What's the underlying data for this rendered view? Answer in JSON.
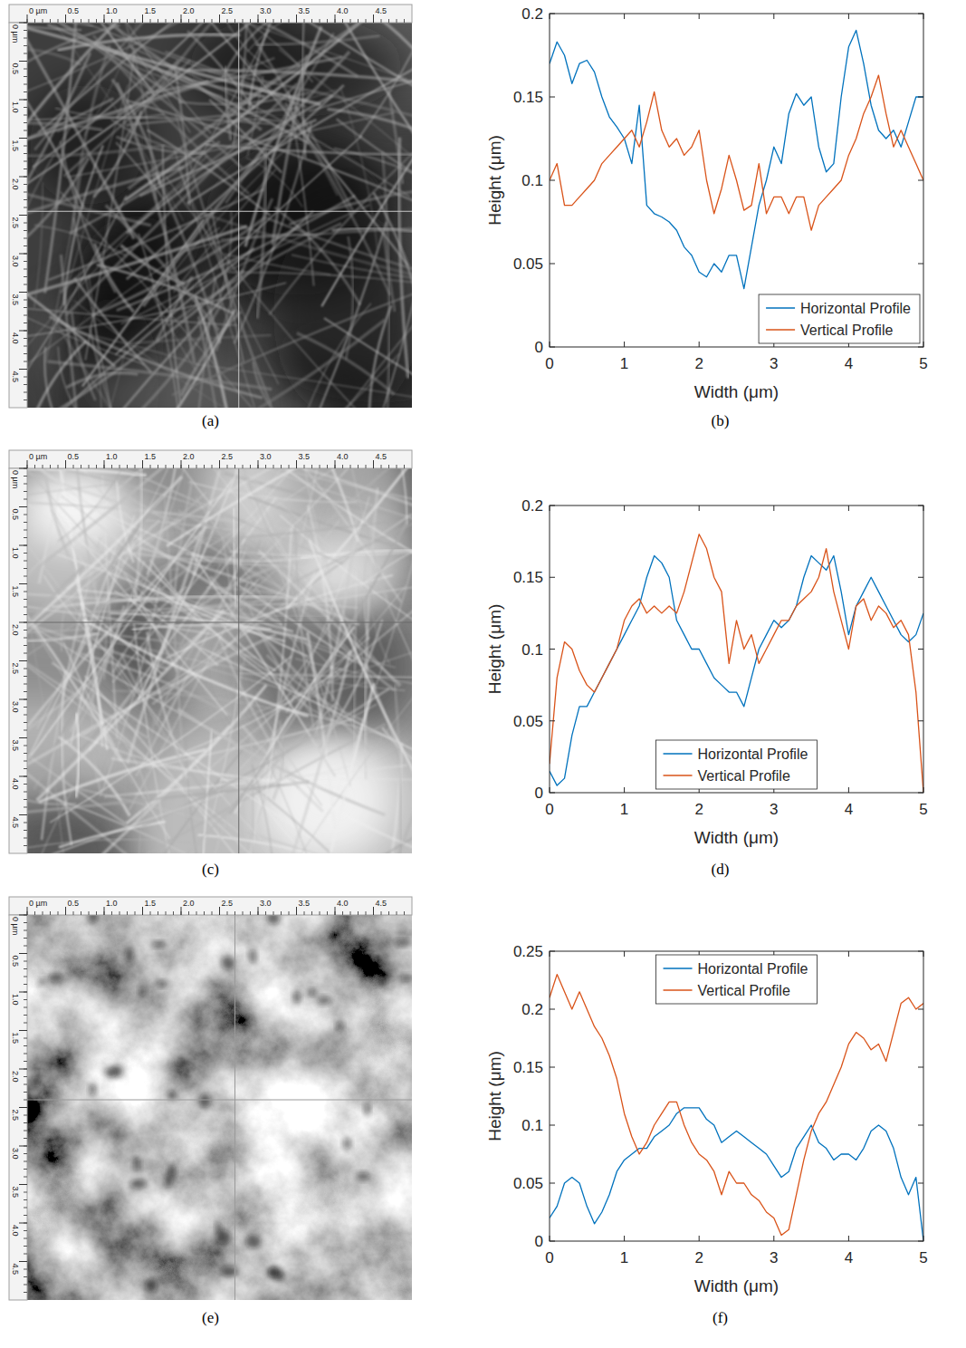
{
  "chart_data": [
    {
      "type": "image",
      "label": "(a)",
      "xlim": [
        0,
        5
      ],
      "ylim": [
        0,
        5
      ],
      "xticks": [
        {
          "value": 0,
          "label": "0 µm"
        },
        0.5,
        {
          "value": 1,
          "label": "1.0"
        },
        1.5,
        {
          "value": 2,
          "label": "2.0"
        },
        2.5,
        {
          "value": 3,
          "label": "3.0"
        },
        3.5,
        {
          "value": 4,
          "label": "4.0"
        },
        4.5
      ],
      "yticks": [
        {
          "value": 0,
          "label": "0 µm"
        },
        0.5,
        {
          "value": 1,
          "label": "1.0"
        },
        1.5,
        {
          "value": 2,
          "label": "2.0"
        },
        2.5,
        {
          "value": 3,
          "label": "3.0"
        },
        3.5,
        {
          "value": 4,
          "label": "4.0"
        },
        4.5
      ],
      "crosshair": {
        "x": 2.75,
        "y": 2.45
      }
    },
    {
      "type": "line",
      "label": "(b)",
      "x_label": "Width (μm)",
      "y_label": "Height (μm)",
      "x": [
        0,
        0.1,
        0.2,
        0.3,
        0.4,
        0.5,
        0.6,
        0.7,
        0.8,
        0.9,
        1,
        1.1,
        1.2,
        1.3,
        1.4,
        1.5,
        1.6,
        1.7,
        1.8,
        1.9,
        2,
        2.1,
        2.2,
        2.3,
        2.4,
        2.5,
        2.6,
        2.7,
        2.8,
        2.9,
        3,
        3.1,
        3.2,
        3.3,
        3.4,
        3.5,
        3.6,
        3.7,
        3.8,
        3.9,
        4,
        4.1,
        4.2,
        4.3,
        4.4,
        4.5,
        4.6,
        4.7,
        4.8,
        4.9,
        5
      ],
      "series": [
        {
          "name": "Horizontal Profile",
          "color": "#0072bd",
          "values": [
            0.17,
            0.183,
            0.175,
            0.158,
            0.17,
            0.172,
            0.165,
            0.15,
            0.138,
            0.132,
            0.125,
            0.11,
            0.145,
            0.085,
            0.08,
            0.078,
            0.075,
            0.07,
            0.06,
            0.055,
            0.045,
            0.042,
            0.05,
            0.045,
            0.055,
            0.055,
            0.035,
            0.06,
            0.085,
            0.1,
            0.12,
            0.11,
            0.14,
            0.152,
            0.145,
            0.15,
            0.12,
            0.105,
            0.11,
            0.15,
            0.18,
            0.19,
            0.17,
            0.145,
            0.13,
            0.125,
            0.13,
            0.12,
            0.135,
            0.15,
            0.15
          ]
        },
        {
          "name": "Vertical Profile",
          "color": "#d95319",
          "values": [
            0.1,
            0.11,
            0.085,
            0.085,
            0.09,
            0.095,
            0.1,
            0.11,
            0.115,
            0.12,
            0.125,
            0.13,
            0.12,
            0.135,
            0.153,
            0.13,
            0.12,
            0.125,
            0.115,
            0.12,
            0.13,
            0.1,
            0.08,
            0.095,
            0.115,
            0.1,
            0.082,
            0.085,
            0.11,
            0.08,
            0.09,
            0.09,
            0.08,
            0.09,
            0.09,
            0.07,
            0.085,
            0.09,
            0.095,
            0.1,
            0.115,
            0.125,
            0.14,
            0.15,
            0.163,
            0.14,
            0.12,
            0.13,
            0.12,
            0.11,
            0.1
          ]
        }
      ],
      "xlim": [
        0,
        5
      ],
      "xticks": [
        0,
        1,
        2,
        3,
        4,
        5
      ],
      "ylim": [
        0,
        0.2
      ],
      "yticks": [
        0,
        0.05,
        0.1,
        0.15,
        0.2
      ],
      "legend": "lower right"
    },
    {
      "type": "image",
      "label": "(c)",
      "xlim": [
        0,
        5
      ],
      "ylim": [
        0,
        5
      ],
      "xticks": [
        {
          "value": 0,
          "label": "0 µm"
        },
        0.5,
        {
          "value": 1,
          "label": "1.0"
        },
        1.5,
        {
          "value": 2,
          "label": "2.0"
        },
        2.5,
        {
          "value": 3,
          "label": "3.0"
        },
        3.5,
        {
          "value": 4,
          "label": "4.0"
        },
        4.5
      ],
      "yticks": [
        {
          "value": 0,
          "label": "0 µm"
        },
        0.5,
        {
          "value": 1,
          "label": "1.0"
        },
        1.5,
        {
          "value": 2,
          "label": "2.0"
        },
        2.5,
        {
          "value": 3,
          "label": "3.0"
        },
        3.5,
        {
          "value": 4,
          "label": "4.0"
        },
        4.5
      ],
      "crosshair": {
        "x": 2.75,
        "y": 2.0
      }
    },
    {
      "type": "line",
      "label": "(d)",
      "x_label": "Width (μm)",
      "y_label": "Height (μm)",
      "x": [
        0,
        0.1,
        0.2,
        0.3,
        0.4,
        0.5,
        0.6,
        0.7,
        0.8,
        0.9,
        1,
        1.1,
        1.2,
        1.3,
        1.4,
        1.5,
        1.6,
        1.7,
        1.8,
        1.9,
        2,
        2.1,
        2.2,
        2.3,
        2.4,
        2.5,
        2.6,
        2.7,
        2.8,
        2.9,
        3,
        3.1,
        3.2,
        3.3,
        3.4,
        3.5,
        3.6,
        3.7,
        3.8,
        3.9,
        4,
        4.1,
        4.2,
        4.3,
        4.4,
        4.5,
        4.6,
        4.7,
        4.8,
        4.9,
        5
      ],
      "series": [
        {
          "name": "Horizontal Profile",
          "color": "#0072bd",
          "values": [
            0.015,
            0.005,
            0.01,
            0.04,
            0.06,
            0.06,
            0.07,
            0.08,
            0.09,
            0.1,
            0.11,
            0.12,
            0.13,
            0.15,
            0.165,
            0.16,
            0.15,
            0.12,
            0.11,
            0.1,
            0.1,
            0.09,
            0.08,
            0.075,
            0.07,
            0.07,
            0.06,
            0.08,
            0.1,
            0.11,
            0.12,
            0.115,
            0.12,
            0.13,
            0.15,
            0.165,
            0.16,
            0.155,
            0.165,
            0.14,
            0.11,
            0.13,
            0.14,
            0.15,
            0.14,
            0.13,
            0.12,
            0.11,
            0.105,
            0.11,
            0.125
          ]
        },
        {
          "name": "Vertical Profile",
          "color": "#d95319",
          "values": [
            0.02,
            0.08,
            0.105,
            0.1,
            0.085,
            0.075,
            0.07,
            0.08,
            0.09,
            0.1,
            0.12,
            0.13,
            0.135,
            0.125,
            0.13,
            0.125,
            0.13,
            0.125,
            0.14,
            0.16,
            0.18,
            0.17,
            0.15,
            0.14,
            0.09,
            0.12,
            0.1,
            0.11,
            0.09,
            0.1,
            0.11,
            0.12,
            0.12,
            0.13,
            0.135,
            0.14,
            0.15,
            0.17,
            0.14,
            0.12,
            0.1,
            0.13,
            0.135,
            0.12,
            0.13,
            0.125,
            0.115,
            0.12,
            0.11,
            0.07,
            0
          ]
        }
      ],
      "xlim": [
        0,
        5
      ],
      "xticks": [
        0,
        1,
        2,
        3,
        4,
        5
      ],
      "ylim": [
        0,
        0.2
      ],
      "yticks": [
        0,
        0.05,
        0.1,
        0.15,
        0.2
      ],
      "legend": "lower center"
    },
    {
      "type": "image",
      "label": "(e)",
      "xlim": [
        0,
        5
      ],
      "ylim": [
        0,
        5
      ],
      "xticks": [
        {
          "value": 0,
          "label": "0 µm"
        },
        0.5,
        {
          "value": 1,
          "label": "1.0"
        },
        1.5,
        {
          "value": 2,
          "label": "2.0"
        },
        2.5,
        {
          "value": 3,
          "label": "3.0"
        },
        3.5,
        {
          "value": 4,
          "label": "4.0"
        },
        4.5
      ],
      "yticks": [
        {
          "value": 0,
          "label": "0 µm"
        },
        0.5,
        {
          "value": 1,
          "label": "1.0"
        },
        1.5,
        {
          "value": 2,
          "label": "2.0"
        },
        2.5,
        {
          "value": 3,
          "label": "3.0"
        },
        3.5,
        {
          "value": 4,
          "label": "4.0"
        },
        4.5
      ],
      "crosshair": {
        "x": 2.7,
        "y": 2.4
      }
    },
    {
      "type": "line",
      "label": "(f)",
      "x_label": "Width (μm)",
      "y_label": "Height (μm)",
      "x": [
        0,
        0.1,
        0.2,
        0.3,
        0.4,
        0.5,
        0.6,
        0.7,
        0.8,
        0.9,
        1,
        1.1,
        1.2,
        1.3,
        1.4,
        1.5,
        1.6,
        1.7,
        1.8,
        1.9,
        2,
        2.1,
        2.2,
        2.3,
        2.4,
        2.5,
        2.6,
        2.7,
        2.8,
        2.9,
        3,
        3.1,
        3.2,
        3.3,
        3.4,
        3.5,
        3.6,
        3.7,
        3.8,
        3.9,
        4,
        4.1,
        4.2,
        4.3,
        4.4,
        4.5,
        4.6,
        4.7,
        4.8,
        4.9,
        5
      ],
      "series": [
        {
          "name": "Horizontal Profile",
          "color": "#0072bd",
          "values": [
            0.02,
            0.03,
            0.05,
            0.055,
            0.05,
            0.03,
            0.015,
            0.025,
            0.04,
            0.06,
            0.07,
            0.075,
            0.08,
            0.08,
            0.09,
            0.095,
            0.1,
            0.11,
            0.115,
            0.115,
            0.115,
            0.105,
            0.1,
            0.085,
            0.09,
            0.095,
            0.09,
            0.085,
            0.08,
            0.075,
            0.065,
            0.055,
            0.06,
            0.08,
            0.09,
            0.1,
            0.085,
            0.08,
            0.07,
            0.075,
            0.075,
            0.07,
            0.08,
            0.095,
            0.1,
            0.095,
            0.08,
            0.055,
            0.04,
            0.055,
            0
          ]
        },
        {
          "name": "Vertical Profile",
          "color": "#d95319",
          "values": [
            0.21,
            0.23,
            0.215,
            0.2,
            0.215,
            0.2,
            0.185,
            0.175,
            0.16,
            0.14,
            0.11,
            0.09,
            0.075,
            0.085,
            0.1,
            0.11,
            0.12,
            0.12,
            0.1,
            0.085,
            0.075,
            0.07,
            0.06,
            0.04,
            0.06,
            0.05,
            0.05,
            0.04,
            0.035,
            0.025,
            0.02,
            0.005,
            0.01,
            0.04,
            0.07,
            0.095,
            0.11,
            0.12,
            0.135,
            0.15,
            0.17,
            0.18,
            0.175,
            0.165,
            0.17,
            0.155,
            0.18,
            0.205,
            0.21,
            0.2,
            0.205
          ]
        }
      ],
      "xlim": [
        0,
        5
      ],
      "xticks": [
        0,
        1,
        2,
        3,
        4,
        5
      ],
      "ylim": [
        0,
        0.25
      ],
      "yticks": [
        0,
        0.05,
        0.1,
        0.15,
        0.2,
        0.25
      ],
      "legend": "upper center"
    }
  ]
}
